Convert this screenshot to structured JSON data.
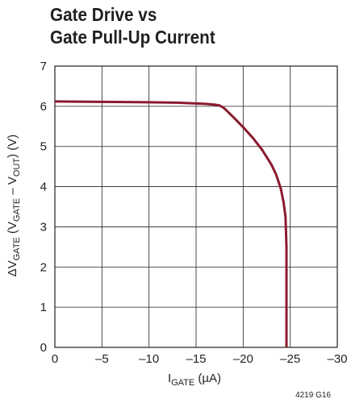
{
  "chart_data": {
    "type": "line",
    "title_lines": [
      "Gate Drive vs",
      "Gate Pull-Up Current"
    ],
    "xlabel": {
      "main": "I",
      "sub": "GATE",
      "rest": " (µA)"
    },
    "ylabel": {
      "prefix": "ΔV",
      "sub1": "GATE",
      "mid1": " (V",
      "sub2": "GATE",
      "mid2": " – V",
      "sub3": "OUT",
      "suffix": ") (V)"
    },
    "figure_code": "4219 G16",
    "xlim": [
      0,
      -30
    ],
    "ylim": [
      0,
      7
    ],
    "x_ticks": [
      0,
      -5,
      -10,
      -15,
      -20,
      -25,
      -30
    ],
    "x_tick_labels": [
      "0",
      "–5",
      "–10",
      "–15",
      "–20",
      "–25",
      "–30"
    ],
    "y_ticks": [
      0,
      1,
      2,
      3,
      4,
      5,
      6,
      7
    ],
    "y_tick_labels": [
      "0",
      "1",
      "2",
      "3",
      "4",
      "5",
      "6",
      "7"
    ],
    "grid": true,
    "series": [
      {
        "color": "#8b1a2e",
        "x": [
          0,
          -5,
          -10,
          -13,
          -15,
          -16,
          -17,
          -17.5,
          -18,
          -19,
          -20,
          -21,
          -22,
          -23,
          -23.5,
          -24,
          -24.3,
          -24.5,
          -24.6,
          -24.6,
          -24.6
        ],
        "y": [
          6.12,
          6.11,
          6.1,
          6.09,
          6.07,
          6.06,
          6.04,
          6.02,
          5.95,
          5.72,
          5.48,
          5.22,
          4.92,
          4.55,
          4.3,
          3.95,
          3.6,
          3.25,
          2.5,
          1.0,
          0
        ]
      }
    ]
  }
}
